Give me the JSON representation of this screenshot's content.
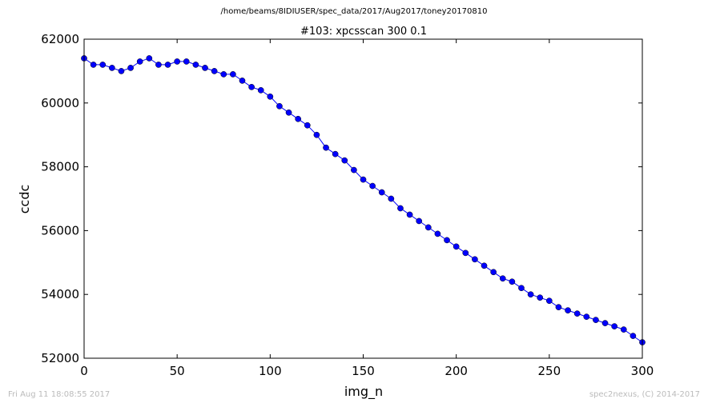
{
  "header": {
    "path": "/home/beams/8IDIUSER/spec_data/2017/Aug2017/toney20170810"
  },
  "footer": {
    "timestamp": "Fri Aug 11 18:08:55 2017",
    "credit": "spec2nexus, (C) 2014-2017"
  },
  "chart_data": {
    "type": "line",
    "title": "#103: xpcsscan 300 0.1",
    "xlabel": "img_n",
    "ylabel": "ccdc",
    "xlim": [
      0,
      300
    ],
    "ylim": [
      52000,
      62000
    ],
    "xticks": [
      0,
      50,
      100,
      150,
      200,
      250,
      300
    ],
    "yticks": [
      52000,
      54000,
      56000,
      58000,
      60000,
      62000
    ],
    "grid": false,
    "marker": "circle",
    "colors": {
      "series": "#0000ff"
    },
    "series": [
      {
        "x": [
          0,
          5,
          10,
          15,
          20,
          25,
          30,
          35,
          40,
          45,
          50,
          55,
          60,
          65,
          70,
          75,
          80,
          85,
          90,
          95,
          100,
          105,
          110,
          115,
          120,
          125,
          130,
          135,
          140,
          145,
          150,
          155,
          160,
          165,
          170,
          175,
          180,
          185,
          190,
          195,
          200,
          205,
          210,
          215,
          220,
          225,
          230,
          235,
          240,
          245,
          250,
          255,
          260,
          265,
          270,
          275,
          280,
          285,
          290,
          295,
          300
        ],
        "y": [
          61400,
          61200,
          61200,
          61100,
          61000,
          61100,
          61300,
          61400,
          61200,
          61200,
          61300,
          61300,
          61200,
          61100,
          61000,
          60900,
          60900,
          60700,
          60500,
          60400,
          60200,
          59900,
          59700,
          59500,
          59300,
          59000,
          58600,
          58400,
          58200,
          57900,
          57600,
          57400,
          57200,
          57000,
          56700,
          56500,
          56300,
          56100,
          55900,
          55700,
          55500,
          55300,
          55100,
          54900,
          54700,
          54500,
          54400,
          54200,
          54000,
          53900,
          53800,
          53600,
          53500,
          53400,
          53300,
          53200,
          53100,
          53000,
          52900,
          52700,
          52500
        ]
      }
    ]
  }
}
